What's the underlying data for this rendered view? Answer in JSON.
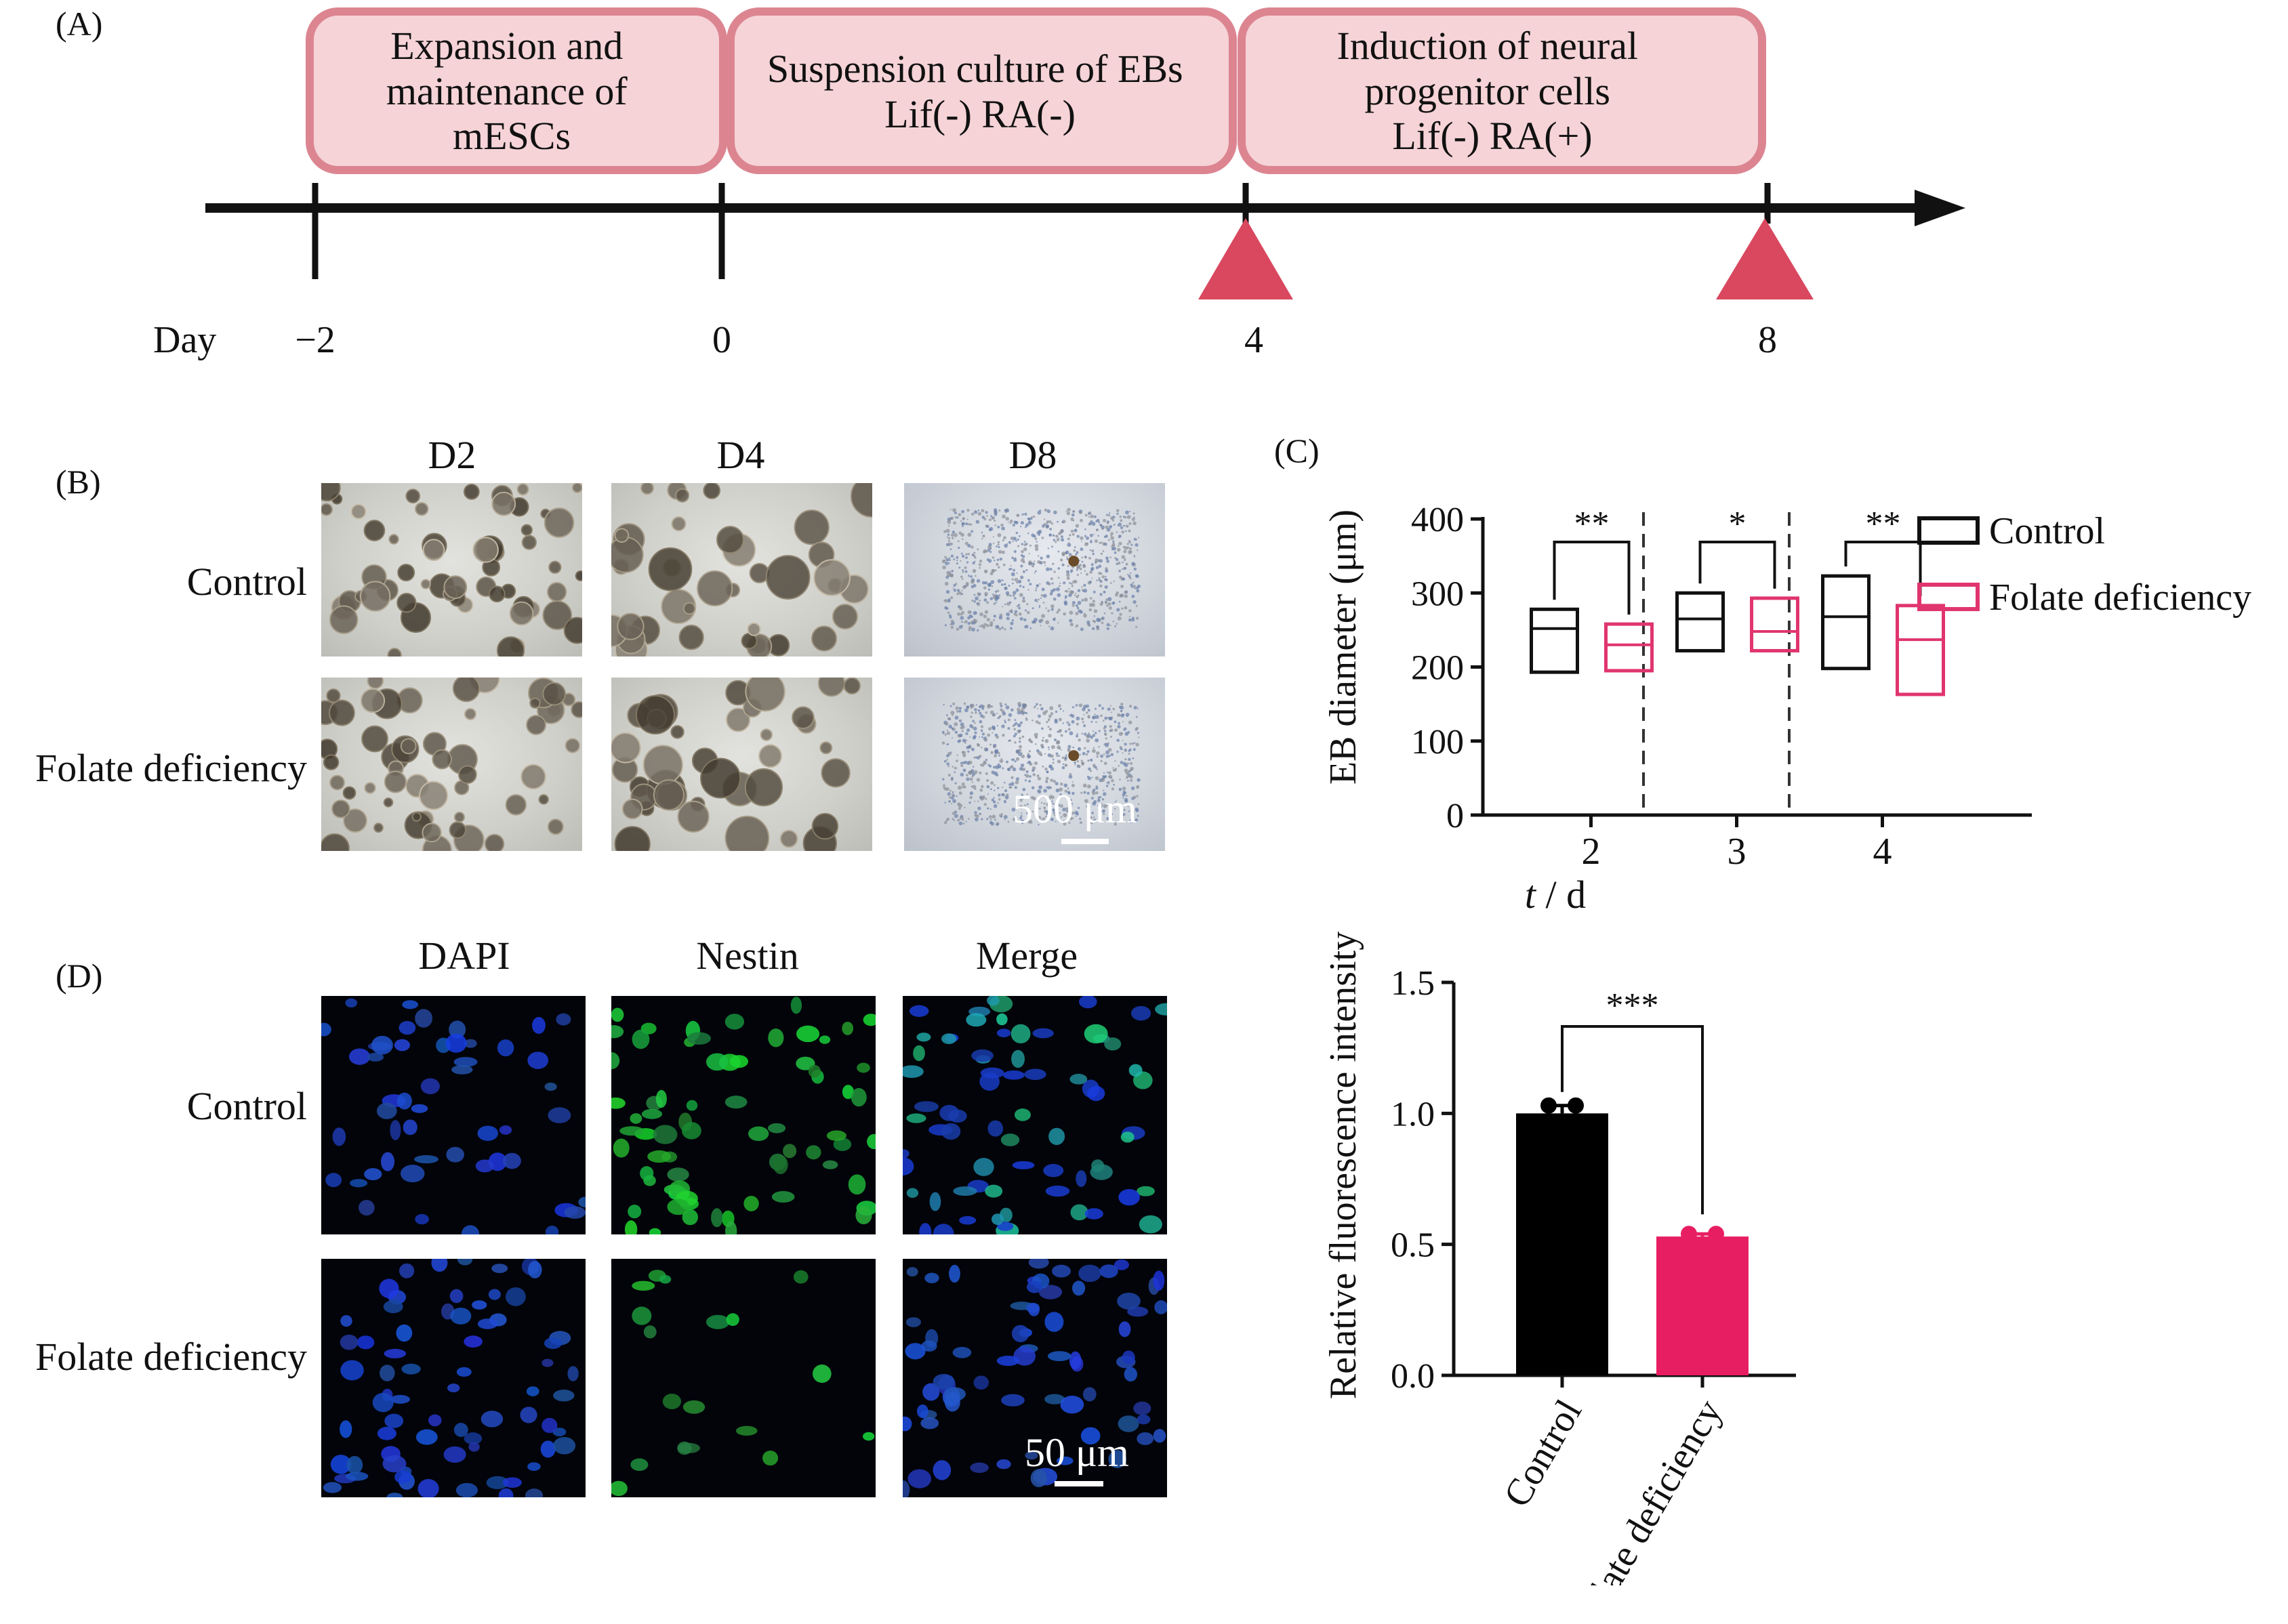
{
  "panel_a": {
    "label": "(A)",
    "stages": [
      {
        "lines": [
          "Expansion and",
          "maintenance of",
          "mESCs"
        ]
      },
      {
        "lines": [
          "Suspension culture of EBs",
          "Lif(-) RA(-)"
        ]
      },
      {
        "lines": [
          "Induction of neural",
          "progenitor cells",
          "Lif(-) RA(+)"
        ]
      }
    ],
    "axis_label": "Day",
    "days": [
      "−2",
      "0",
      "4",
      "8"
    ],
    "colors": {
      "box_fill": "#f5d3d7",
      "box_stroke": "#dc8591",
      "triangle": "#d9485f",
      "axis": "#111111"
    }
  },
  "panel_b": {
    "label": "(B)",
    "columns": [
      "D2",
      "D4",
      "D8"
    ],
    "rows": [
      "Control",
      "Folate deficiency"
    ],
    "scale_bar": "500 μm"
  },
  "panel_c": {
    "label": "(C)",
    "ylabel": "EB diameter (μm)",
    "xlabel_italic": "t",
    "xlabel_rest": " / d",
    "y_ticks": [
      "0",
      "100",
      "200",
      "300",
      "400"
    ],
    "legend": [
      "Control",
      "Folate deficiency"
    ]
  },
  "panel_d": {
    "label": "(D)",
    "columns": [
      "DAPI",
      "Nestin",
      "Merge"
    ],
    "rows": [
      "Control",
      "Folate deficiency"
    ],
    "scale_bar": "50 μm",
    "ylabel": "Relative fluorescence intensity",
    "y_ticks": [
      "0.0",
      "0.5",
      "1.0",
      "1.5"
    ]
  },
  "chart_data": [
    {
      "type": "box",
      "xlabel": "t / d",
      "ylabel": "EB diameter (μm)",
      "ylim": [
        0,
        400
      ],
      "categories": [
        "2",
        "3",
        "4"
      ],
      "series": [
        {
          "name": "Control",
          "color": "#111111",
          "boxes": [
            {
              "low": 193,
              "median": 252,
              "high": 278
            },
            {
              "low": 222,
              "median": 265,
              "high": 300
            },
            {
              "low": 198,
              "median": 268,
              "high": 323
            }
          ]
        },
        {
          "name": "Folate deficiency",
          "color": "#e0356e",
          "boxes": [
            {
              "low": 195,
              "median": 230,
              "high": 258
            },
            {
              "low": 222,
              "median": 248,
              "high": 293
            },
            {
              "low": 163,
              "median": 237,
              "high": 283
            }
          ]
        }
      ],
      "significance": [
        "**",
        "*",
        "**"
      ],
      "legend_position": "right",
      "grid": false
    },
    {
      "type": "bar",
      "ylabel": "Relative fluorescence intensity",
      "ylim": [
        0,
        1.5
      ],
      "categories": [
        "Control",
        "Folate deficiency"
      ],
      "values": [
        1.0,
        0.53
      ],
      "errors": [
        0.03,
        0.01
      ],
      "points": [
        [
          1.03,
          1.03
        ],
        [
          0.54,
          0.54
        ]
      ],
      "colors": [
        "#000000",
        "#e81e63"
      ],
      "significance": "***",
      "grid": false
    }
  ]
}
